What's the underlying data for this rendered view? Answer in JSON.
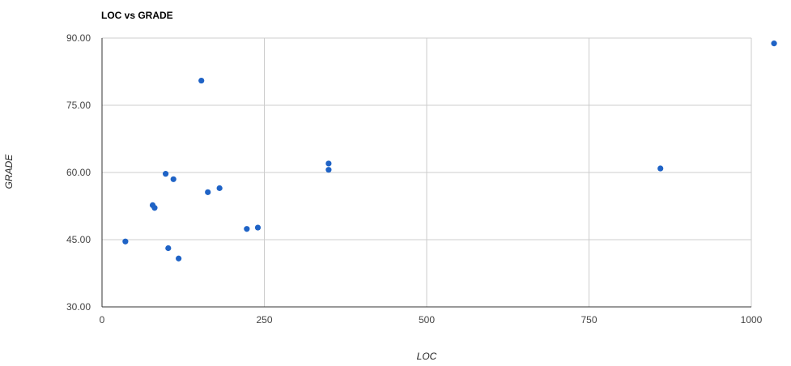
{
  "chart_data": {
    "type": "scatter",
    "title": "LOC vs GRADE",
    "xlabel": "LOC",
    "ylabel": "GRADE",
    "xlim": [
      0,
      1000
    ],
    "ylim": [
      30,
      90
    ],
    "x_ticks": [
      "0",
      "250",
      "500",
      "750",
      "1000"
    ],
    "y_ticks": [
      "90.00",
      "75.00",
      "60.00",
      "45.00",
      "30.00"
    ],
    "grid": true,
    "legend": "none",
    "color": "#1f63c6",
    "points": [
      {
        "x": 36,
        "y": 44.6
      },
      {
        "x": 78,
        "y": 52.7
      },
      {
        "x": 81,
        "y": 52.1
      },
      {
        "x": 98,
        "y": 59.7
      },
      {
        "x": 102,
        "y": 43.1
      },
      {
        "x": 110,
        "y": 58.5
      },
      {
        "x": 118,
        "y": 40.8
      },
      {
        "x": 153,
        "y": 80.5
      },
      {
        "x": 163,
        "y": 55.6
      },
      {
        "x": 181,
        "y": 56.5
      },
      {
        "x": 223,
        "y": 47.4
      },
      {
        "x": 240,
        "y": 47.7
      },
      {
        "x": 349,
        "y": 62.0
      },
      {
        "x": 349,
        "y": 60.6
      },
      {
        "x": 860,
        "y": 60.9
      },
      {
        "x": 1035,
        "y": 88.8
      }
    ]
  }
}
